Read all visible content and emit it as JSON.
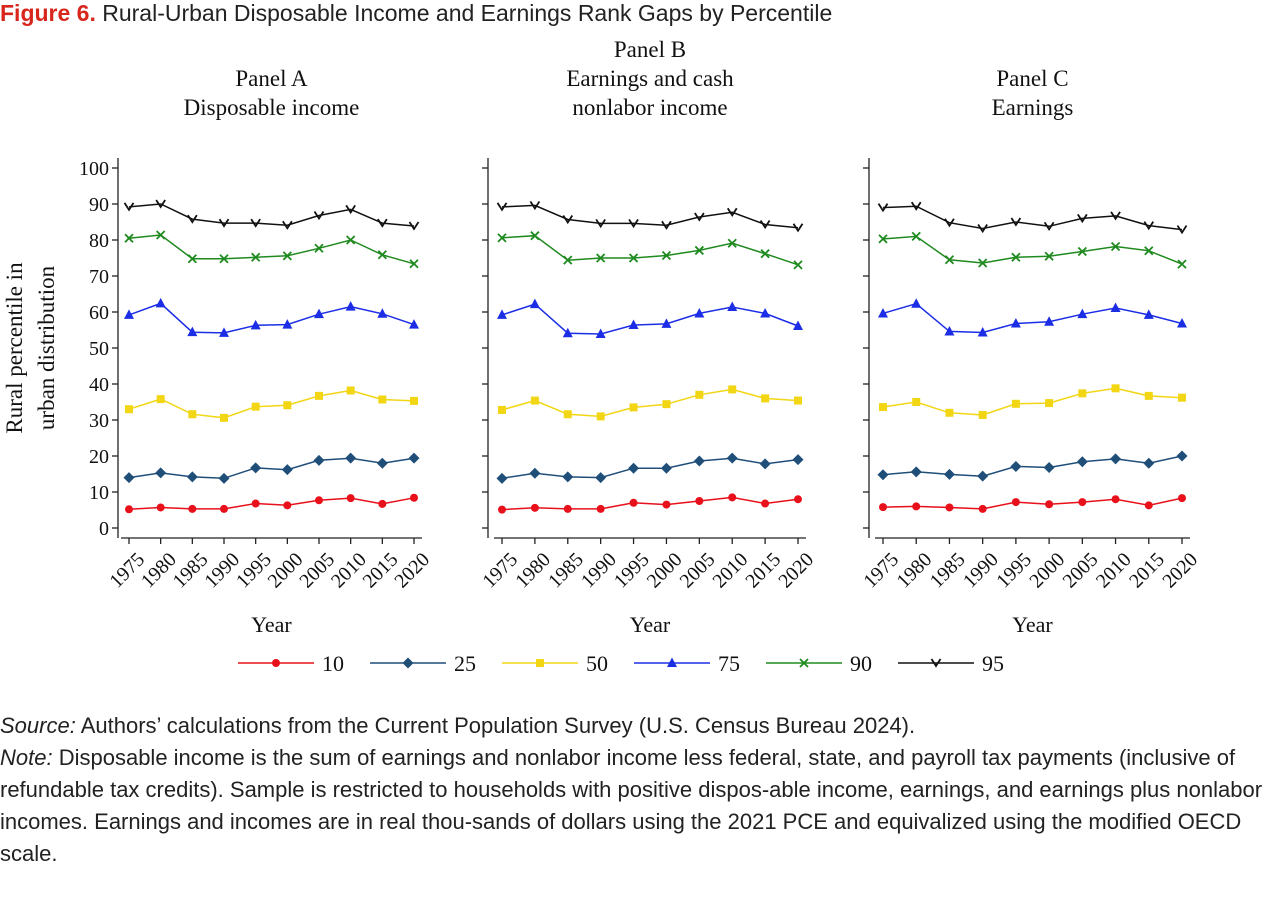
{
  "figure": {
    "label": "Figure 6.",
    "title": "Rural-Urban Disposable Income and Earnings Rank Gaps by Percentile"
  },
  "notes": {
    "source_label": "Source:",
    "source_text": "Authors’ calculations from the Current Population Survey (U.S. Census Bureau 2024).",
    "note_label": "Note:",
    "note_text": "Disposable income is the sum of earnings and nonlabor income less federal, state, and payroll tax payments (inclusive of refundable tax credits). Sample is restricted to households with positive dispos-able income, earnings, and earnings plus nonlabor incomes. Earnings and incomes are in real thou-sands of dollars using the 2021 PCE and equivalized using the modified OECD scale."
  },
  "series_styles": [
    {
      "name": "10",
      "color": "#e8101a",
      "marker": "circle"
    },
    {
      "name": "25",
      "color": "#1f4e79",
      "marker": "diamond"
    },
    {
      "name": "50",
      "color": "#f2d614",
      "marker": "square"
    },
    {
      "name": "75",
      "color": "#1b2ee6",
      "marker": "triangle"
    },
    {
      "name": "90",
      "color": "#1f8a1f",
      "marker": "x"
    },
    {
      "name": "95",
      "color": "#111111",
      "marker": "chevron"
    }
  ],
  "chart_data": [
    {
      "type": "line",
      "title_lines": [
        "Panel A",
        "Disposable income"
      ],
      "xlabel": "Year",
      "ylabel_lines": [
        "Rural percentile in",
        "urban distribution"
      ],
      "ylim": [
        0,
        100
      ],
      "yticks": [
        0,
        10,
        20,
        30,
        40,
        50,
        60,
        70,
        80,
        90,
        100
      ],
      "x": [
        1975,
        1980,
        1985,
        1990,
        1995,
        2000,
        2005,
        2010,
        2015,
        2020
      ],
      "series": [
        {
          "name": "10",
          "values": [
            5.2,
            5.7,
            5.3,
            5.3,
            6.8,
            6.3,
            7.7,
            8.3,
            6.7,
            8.4
          ]
        },
        {
          "name": "25",
          "values": [
            14.0,
            15.3,
            14.2,
            13.8,
            16.7,
            16.2,
            18.8,
            19.4,
            18.0,
            19.4
          ]
        },
        {
          "name": "50",
          "values": [
            33.0,
            35.8,
            31.6,
            30.6,
            33.7,
            34.1,
            36.7,
            38.2,
            35.7,
            35.3
          ]
        },
        {
          "name": "75",
          "values": [
            59.2,
            62.4,
            54.4,
            54.2,
            56.3,
            56.5,
            59.4,
            61.5,
            59.5,
            56.5
          ]
        },
        {
          "name": "90",
          "values": [
            80.5,
            81.4,
            74.8,
            74.8,
            75.2,
            75.6,
            77.7,
            80.0,
            75.9,
            73.4
          ]
        },
        {
          "name": "95",
          "values": [
            89.2,
            90.0,
            85.8,
            84.7,
            84.7,
            84.1,
            86.8,
            88.5,
            84.7,
            83.9
          ]
        }
      ]
    },
    {
      "type": "line",
      "title_lines": [
        "Panel B",
        "Earnings and cash",
        "nonlabor income"
      ],
      "xlabel": "Year",
      "ylim": [
        0,
        100
      ],
      "x": [
        1975,
        1980,
        1985,
        1990,
        1995,
        2000,
        2005,
        2010,
        2015,
        2020
      ],
      "series": [
        {
          "name": "10",
          "values": [
            5.1,
            5.6,
            5.3,
            5.3,
            7.0,
            6.5,
            7.5,
            8.5,
            6.8,
            8.0
          ]
        },
        {
          "name": "25",
          "values": [
            13.8,
            15.2,
            14.2,
            14.0,
            16.6,
            16.6,
            18.6,
            19.4,
            17.8,
            19.0
          ]
        },
        {
          "name": "50",
          "values": [
            32.8,
            35.4,
            31.6,
            31.0,
            33.5,
            34.4,
            37.0,
            38.5,
            36.0,
            35.4
          ]
        },
        {
          "name": "75",
          "values": [
            59.2,
            62.2,
            54.1,
            53.9,
            56.4,
            56.7,
            59.6,
            61.4,
            59.6,
            56.1
          ]
        },
        {
          "name": "90",
          "values": [
            80.6,
            81.2,
            74.4,
            75.0,
            75.0,
            75.7,
            77.1,
            79.1,
            76.2,
            73.1
          ]
        },
        {
          "name": "95",
          "values": [
            89.2,
            89.6,
            85.7,
            84.6,
            84.6,
            84.1,
            86.4,
            87.7,
            84.3,
            83.4
          ]
        }
      ]
    },
    {
      "type": "line",
      "title_lines": [
        "Panel C",
        "Earnings"
      ],
      "xlabel": "Year",
      "ylim": [
        0,
        100
      ],
      "x": [
        1975,
        1980,
        1985,
        1990,
        1995,
        2000,
        2005,
        2010,
        2015,
        2020
      ],
      "series": [
        {
          "name": "10",
          "values": [
            5.8,
            6.0,
            5.7,
            5.3,
            7.2,
            6.6,
            7.2,
            8.0,
            6.3,
            8.3
          ]
        },
        {
          "name": "25",
          "values": [
            14.8,
            15.6,
            14.9,
            14.4,
            17.1,
            16.8,
            18.4,
            19.2,
            18.0,
            20.0
          ]
        },
        {
          "name": "50",
          "values": [
            33.6,
            35.0,
            32.0,
            31.4,
            34.5,
            34.7,
            37.4,
            38.8,
            36.7,
            36.2
          ]
        },
        {
          "name": "75",
          "values": [
            59.6,
            62.3,
            54.6,
            54.3,
            56.8,
            57.3,
            59.4,
            61.1,
            59.2,
            56.8
          ]
        },
        {
          "name": "90",
          "values": [
            80.3,
            81.0,
            74.5,
            73.6,
            75.2,
            75.5,
            76.8,
            78.2,
            77.0,
            73.3
          ]
        },
        {
          "name": "95",
          "values": [
            89.0,
            89.4,
            84.8,
            83.2,
            85.0,
            83.8,
            86.0,
            86.7,
            84.0,
            82.9
          ]
        }
      ]
    }
  ]
}
